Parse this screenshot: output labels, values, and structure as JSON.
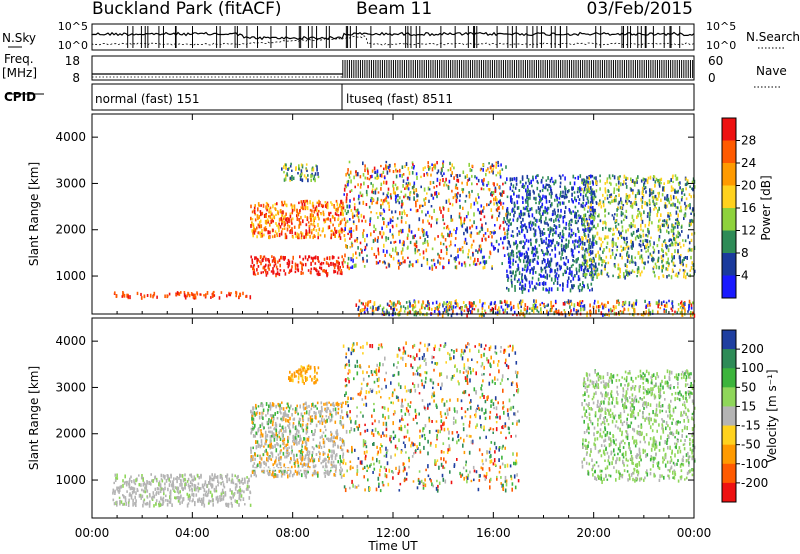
{
  "header": {
    "station": "Buckland Park (fitACF)",
    "beam": "Beam 11",
    "date": "03/Feb/2015"
  },
  "noise_panel": {
    "left_label": "N.Sky",
    "right_label": "N.Search",
    "left_ticks": [
      "10^5",
      "10^0"
    ],
    "right_ticks": [
      "10^5",
      "10^0"
    ]
  },
  "freq_panel": {
    "left_label_1": "Freq.",
    "left_label_2": "[MHz]",
    "right_label": "Nave",
    "left_ticks": [
      "18",
      "8"
    ],
    "right_ticks": [
      "60",
      "0"
    ]
  },
  "cpid_panel": {
    "label": "CPID",
    "modes": [
      {
        "name": "normal (fast) 151",
        "start_hour": 0
      },
      {
        "name": "ltuseq (fast) 8511",
        "start_hour": 10
      }
    ]
  },
  "chart_data": [
    {
      "type": "heatmap",
      "title": "",
      "xlabel": "Time UT",
      "ylabel": "Slant Range [km]",
      "xlim_hours": [
        0,
        24
      ],
      "ylim": [
        180,
        4500
      ],
      "yticks": [
        "4000",
        "3000",
        "2000",
        "1000"
      ],
      "ytick_values": [
        4000,
        3000,
        2000,
        1000
      ],
      "colorbar": {
        "label": "Power [dB]",
        "ticks": [
          "28",
          "24",
          "20",
          "16",
          "12",
          "8",
          "4"
        ],
        "colors": [
          "#ee1111",
          "#ff5a00",
          "#ff9a00",
          "#ffd21e",
          "#8ed23c",
          "#2e8b57",
          "#1a3a9c",
          "#1a1aff"
        ]
      },
      "features": [
        {
          "t0": 0.8,
          "t1": 6.3,
          "r0": 560,
          "r1": 680,
          "level": "mid"
        },
        {
          "t0": 6.3,
          "t1": 10.0,
          "r0": 1050,
          "r1": 1450,
          "level": "high"
        },
        {
          "t0": 6.3,
          "t1": 10.0,
          "r0": 1850,
          "r1": 2650,
          "level": "mid-high"
        },
        {
          "t0": 7.5,
          "t1": 9.0,
          "r0": 3100,
          "r1": 3450,
          "level": "low-mid"
        },
        {
          "t0": 10.0,
          "t1": 16.5,
          "r0": 1200,
          "r1": 3500,
          "level": "mixed"
        },
        {
          "t0": 16.5,
          "t1": 20.0,
          "r0": 700,
          "r1": 3200,
          "level": "low"
        },
        {
          "t0": 19.5,
          "t1": 24.0,
          "r0": 1000,
          "r1": 3200,
          "level": "low-mid"
        },
        {
          "t0": 10.5,
          "t1": 24.0,
          "r0": 180,
          "r1": 500,
          "level": "mixed"
        }
      ]
    },
    {
      "type": "heatmap",
      "title": "",
      "xlabel": "Time UT",
      "ylabel": "Slant Range [km]",
      "xlim_hours": [
        0,
        24
      ],
      "ylim": [
        180,
        4500
      ],
      "yticks": [
        "4000",
        "3000",
        "2000",
        "1000"
      ],
      "ytick_values": [
        4000,
        3000,
        2000,
        1000
      ],
      "colorbar": {
        "label": "Velocity [m s⁻¹]",
        "ticks": [
          "200",
          "100",
          "50",
          "15",
          "-15",
          "-50",
          "-100",
          "-200"
        ],
        "colors": [
          "#1f3fa0",
          "#2e8b57",
          "#3cb43c",
          "#8fd65a",
          "#b4b4b4",
          "#ffd21e",
          "#ff9a00",
          "#ff5a00",
          "#ee1111"
        ]
      },
      "features": [
        {
          "t0": 0.8,
          "t1": 6.3,
          "r0": 480,
          "r1": 1150,
          "level": "grey"
        },
        {
          "t0": 6.3,
          "t1": 10.0,
          "r0": 1100,
          "r1": 2700,
          "level": "grey-orange"
        },
        {
          "t0": 7.8,
          "t1": 9.0,
          "r0": 3100,
          "r1": 3500,
          "level": "orange"
        },
        {
          "t0": 10.0,
          "t1": 17.0,
          "r0": 800,
          "r1": 4000,
          "level": "scatter"
        },
        {
          "t0": 19.5,
          "t1": 24.0,
          "r0": 1000,
          "r1": 3400,
          "level": "green-grey"
        }
      ]
    }
  ],
  "x_axis": {
    "ticks": [
      "00:00",
      "04:00",
      "08:00",
      "12:00",
      "16:00",
      "20:00",
      "00:00"
    ],
    "label": "Time UT"
  }
}
